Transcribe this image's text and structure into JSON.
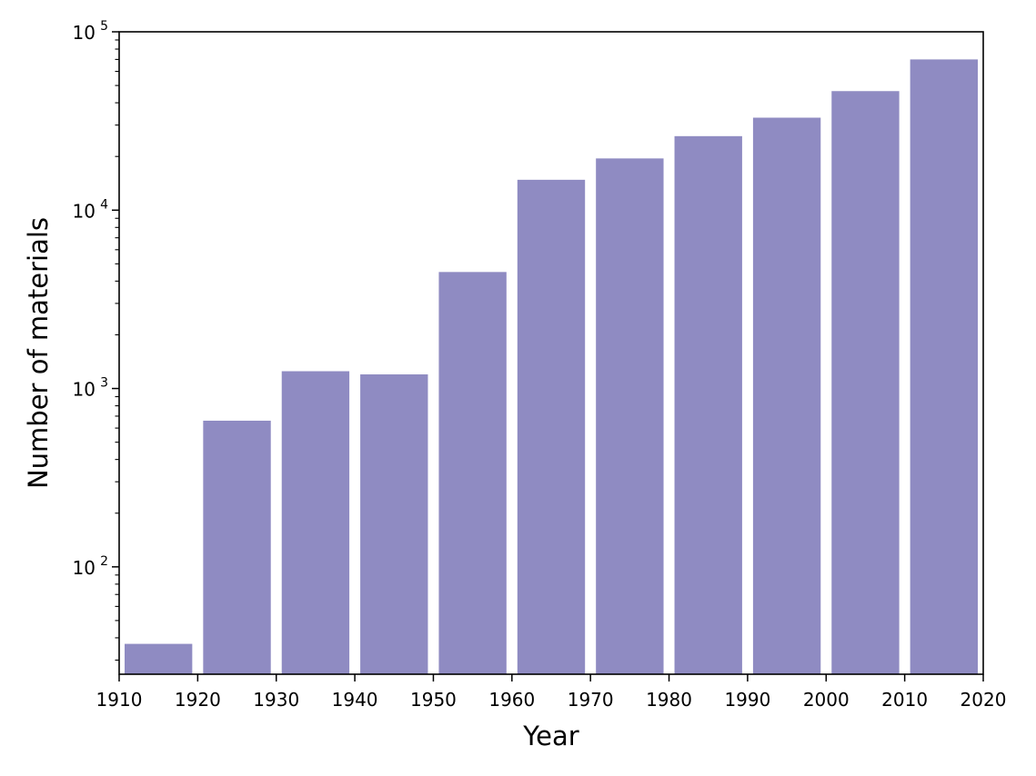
{
  "chart_data": {
    "type": "bar",
    "title": "",
    "xlabel": "Year",
    "ylabel": "Number of materials",
    "x_scale": "linear",
    "y_scale": "log",
    "xlim": [
      1910,
      2020
    ],
    "ylim": [
      25,
      100000
    ],
    "x_ticks": [
      "1910",
      "1920",
      "1930",
      "1940",
      "1950",
      "1960",
      "1970",
      "1980",
      "1990",
      "2000",
      "2010",
      "2020"
    ],
    "y_ticks": [
      {
        "value": 100,
        "base": "10",
        "exp": "2"
      },
      {
        "value": 1000,
        "base": "10",
        "exp": "3"
      },
      {
        "value": 10000,
        "base": "10",
        "exp": "4"
      },
      {
        "value": 100000,
        "base": "10",
        "exp": "5"
      }
    ],
    "bar_color": "#8f8bc2",
    "grid": false,
    "bars": [
      {
        "start": 1910,
        "end": 1920,
        "value": 37
      },
      {
        "start": 1920,
        "end": 1930,
        "value": 660
      },
      {
        "start": 1930,
        "end": 1940,
        "value": 1250
      },
      {
        "start": 1940,
        "end": 1950,
        "value": 1200
      },
      {
        "start": 1950,
        "end": 1960,
        "value": 4500
      },
      {
        "start": 1960,
        "end": 1970,
        "value": 14800
      },
      {
        "start": 1970,
        "end": 1980,
        "value": 19500
      },
      {
        "start": 1980,
        "end": 1990,
        "value": 26000
      },
      {
        "start": 1990,
        "end": 2000,
        "value": 33000
      },
      {
        "start": 2000,
        "end": 2010,
        "value": 46500
      },
      {
        "start": 2010,
        "end": 2020,
        "value": 70000
      }
    ]
  }
}
